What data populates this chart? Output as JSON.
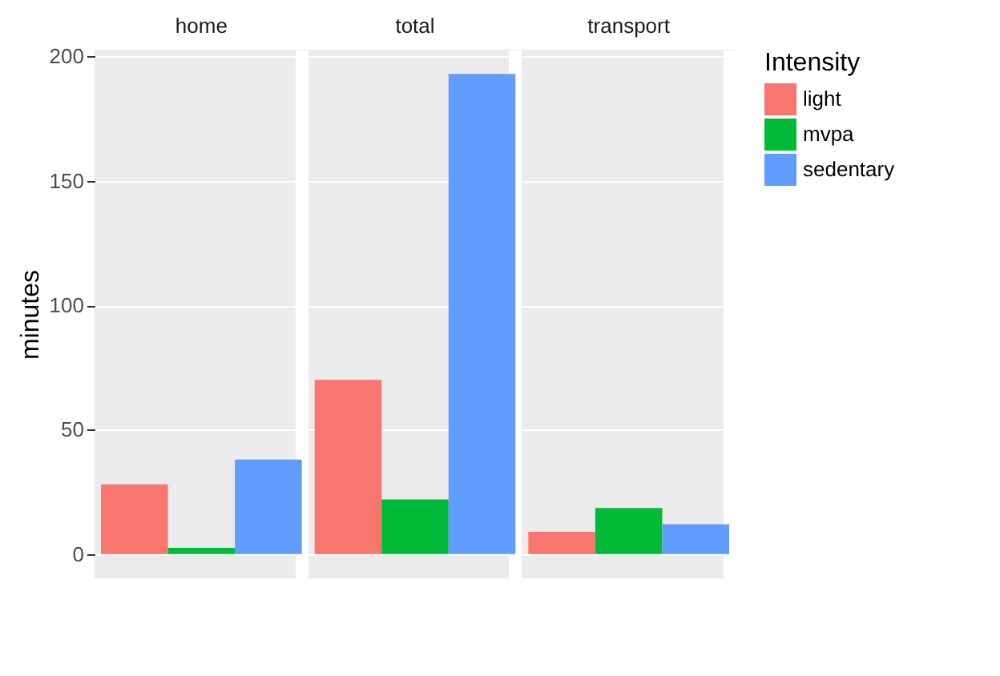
{
  "chart_data": {
    "type": "bar",
    "ylabel": "minutes",
    "legend_title": "Intensity",
    "legend": "right",
    "categories": [
      "home",
      "total",
      "transport"
    ],
    "series": [
      {
        "name": "light",
        "color": "#f8766d",
        "values": [
          28,
          70,
          9
        ]
      },
      {
        "name": "mvpa",
        "color": "#00ba38",
        "values": [
          2.5,
          22,
          18.5
        ]
      },
      {
        "name": "sedentary",
        "color": "#619cff",
        "values": [
          38,
          193,
          12
        ]
      }
    ],
    "ylim": [
      -9.7,
      202.7
    ],
    "yticks": [
      0,
      50,
      100,
      150,
      200
    ],
    "grid": true
  }
}
